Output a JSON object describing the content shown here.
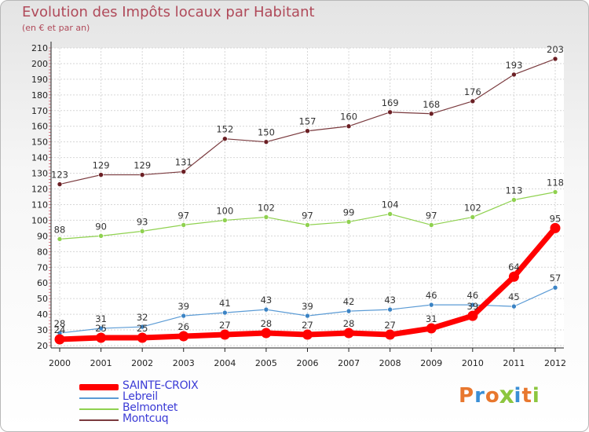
{
  "chart_data": {
    "type": "line",
    "title": "Evolution des Impôts locaux par Habitant",
    "subtitle": "(en € et par an)",
    "categories": [
      "2000",
      "2001",
      "2002",
      "2003",
      "2004",
      "2005",
      "2006",
      "2007",
      "2008",
      "2009",
      "2010",
      "2011",
      "2012"
    ],
    "ylim": [
      20,
      210
    ],
    "yticks": [
      20,
      30,
      40,
      50,
      60,
      70,
      80,
      90,
      100,
      110,
      120,
      130,
      140,
      150,
      160,
      170,
      180,
      190,
      200,
      210
    ],
    "grid": true,
    "series": [
      {
        "name": "Montcuq",
        "color": "#6b1f24",
        "line": "#7a3a3e",
        "width": 1.2,
        "values": [
          123,
          129,
          129,
          131,
          152,
          150,
          157,
          160,
          169,
          168,
          176,
          193,
          203
        ]
      },
      {
        "name": "Belmontet",
        "color": "#8fd14f",
        "line": "#8fd14f",
        "width": 1.2,
        "values": [
          88,
          90,
          93,
          97,
          100,
          102,
          97,
          99,
          104,
          97,
          102,
          113,
          118
        ]
      },
      {
        "name": "Lebreil",
        "color": "#3b83c4",
        "line": "#5b9bd5",
        "width": 1.2,
        "values": [
          28,
          31,
          32,
          39,
          41,
          43,
          39,
          42,
          43,
          46,
          46,
          45,
          57
        ]
      },
      {
        "name": "SAINTE-CROIX",
        "color": "#ff0000",
        "line": "#ff0000",
        "width": 7,
        "values": [
          24,
          25,
          25,
          26,
          27,
          28,
          27,
          28,
          27,
          31,
          39,
          64,
          95
        ]
      }
    ]
  },
  "legend": {
    "items": [
      {
        "name": "SAINTE-CROIX",
        "color": "#ff0000"
      },
      {
        "name": "Lebreil",
        "color": "#5b9bd5"
      },
      {
        "name": "Belmontet",
        "color": "#8fd14f"
      },
      {
        "name": "Montcuq",
        "color": "#7a3a3e"
      }
    ]
  },
  "logo": {
    "text": "Proxiti",
    "letters": [
      {
        "ch": "P",
        "color": "#e8772e"
      },
      {
        "ch": "r",
        "color": "#3a8fd6"
      },
      {
        "ch": "o",
        "color": "#e8772e"
      },
      {
        "ch": "x",
        "color": "#8cc63f"
      },
      {
        "ch": "i",
        "color": "#3a8fd6"
      },
      {
        "ch": "t",
        "color": "#e8772e"
      },
      {
        "ch": "i",
        "color": "#8cc63f"
      }
    ]
  }
}
